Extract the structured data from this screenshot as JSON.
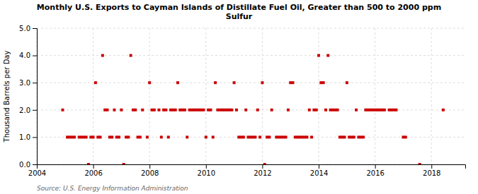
{
  "chart_data": {
    "type": "scatter",
    "title": "Monthly U.S. Exports to Cayman Islands of Distillate Fuel Oil, Greater than 500 to 2000 ppm\nSulfur",
    "y_label": "Thousand Barrels per Day",
    "annotations": [
      "Source: U.S. Energy Information Administration"
    ],
    "color": "#cc0000",
    "marker": "square",
    "grid": true,
    "xlim": [
      2004.0,
      2019.2
    ],
    "xticks": [
      2004,
      2006,
      2008,
      2010,
      2012,
      2014,
      2016,
      2018
    ],
    "ylim": [
      0.0,
      5.0
    ],
    "yticks": [
      {
        "value": 0.0,
        "label": "0.0"
      },
      {
        "value": 1.0,
        "label": "1.0"
      },
      {
        "value": 2.0,
        "label": "2.0"
      },
      {
        "value": 3.0,
        "label": "3.0"
      },
      {
        "value": 4.0,
        "label": "4.0"
      },
      {
        "value": 5.0,
        "label": "5.0"
      }
    ],
    "x": [
      2004.917,
      2005.083,
      2005.167,
      2005.25,
      2005.333,
      2005.5,
      2005.583,
      2005.667,
      2005.75,
      2005.833,
      2005.917,
      2006.0,
      2006.083,
      2006.167,
      2006.25,
      2006.333,
      2006.417,
      2006.5,
      2006.583,
      2006.667,
      2006.75,
      2006.833,
      2006.917,
      2007.0,
      2007.083,
      2007.167,
      2007.25,
      2007.333,
      2007.417,
      2007.5,
      2007.583,
      2007.667,
      2007.75,
      2007.917,
      2008.0,
      2008.083,
      2008.167,
      2008.333,
      2008.417,
      2008.5,
      2008.583,
      2008.667,
      2008.75,
      2008.833,
      2008.917,
      2009.0,
      2009.083,
      2009.167,
      2009.25,
      2009.333,
      2009.417,
      2009.5,
      2009.583,
      2009.667,
      2009.75,
      2009.833,
      2009.917,
      2010.0,
      2010.083,
      2010.167,
      2010.25,
      2010.333,
      2010.417,
      2010.5,
      2010.583,
      2010.667,
      2010.75,
      2010.833,
      2010.917,
      2011.0,
      2011.083,
      2011.167,
      2011.25,
      2011.333,
      2011.417,
      2011.5,
      2011.583,
      2011.667,
      2011.75,
      2011.833,
      2011.917,
      2012.0,
      2012.083,
      2012.167,
      2012.25,
      2012.333,
      2012.5,
      2012.583,
      2012.667,
      2012.75,
      2012.833,
      2012.917,
      2013.0,
      2013.083,
      2013.167,
      2013.25,
      2013.333,
      2013.417,
      2013.5,
      2013.583,
      2013.667,
      2013.75,
      2013.833,
      2013.917,
      2014.0,
      2014.083,
      2014.167,
      2014.25,
      2014.333,
      2014.417,
      2014.5,
      2014.583,
      2014.667,
      2014.75,
      2014.833,
      2014.917,
      2015.0,
      2015.083,
      2015.167,
      2015.25,
      2015.333,
      2015.417,
      2015.5,
      2015.583,
      2015.667,
      2015.75,
      2015.833,
      2015.917,
      2016.0,
      2016.083,
      2016.167,
      2016.25,
      2016.333,
      2016.5,
      2016.583,
      2016.667,
      2016.75,
      2017.0,
      2017.083,
      2017.583,
      2018.417
    ],
    "values": [
      2.0,
      1.0,
      1.0,
      1.0,
      1.0,
      1.0,
      1.0,
      1.0,
      1.0,
      0.0,
      1.0,
      1.0,
      3.0,
      1.0,
      1.0,
      4.0,
      2.0,
      2.0,
      1.0,
      1.0,
      2.0,
      1.0,
      1.0,
      2.0,
      0.0,
      1.0,
      1.0,
      4.0,
      2.0,
      2.0,
      1.0,
      1.0,
      2.0,
      1.0,
      3.0,
      2.0,
      2.0,
      2.0,
      1.0,
      2.0,
      2.0,
      1.0,
      2.0,
      2.0,
      2.0,
      3.0,
      2.0,
      2.0,
      2.0,
      1.0,
      2.0,
      2.0,
      2.0,
      2.0,
      2.0,
      2.0,
      2.0,
      1.0,
      2.0,
      2.0,
      1.0,
      3.0,
      2.0,
      2.0,
      2.0,
      2.0,
      2.0,
      2.0,
      2.0,
      3.0,
      2.0,
      1.0,
      1.0,
      1.0,
      2.0,
      1.0,
      1.0,
      1.0,
      1.0,
      2.0,
      1.0,
      3.0,
      0.0,
      1.0,
      1.0,
      2.0,
      1.0,
      1.0,
      1.0,
      1.0,
      1.0,
      2.0,
      3.0,
      3.0,
      1.0,
      1.0,
      1.0,
      1.0,
      1.0,
      1.0,
      2.0,
      1.0,
      2.0,
      2.0,
      4.0,
      3.0,
      3.0,
      2.0,
      4.0,
      2.0,
      2.0,
      2.0,
      2.0,
      1.0,
      1.0,
      1.0,
      3.0,
      1.0,
      1.0,
      1.0,
      2.0,
      1.0,
      1.0,
      1.0,
      2.0,
      2.0,
      2.0,
      2.0,
      2.0,
      2.0,
      2.0,
      2.0,
      2.0,
      2.0,
      2.0,
      2.0,
      2.0,
      1.0,
      1.0,
      0.0,
      2.0
    ]
  }
}
